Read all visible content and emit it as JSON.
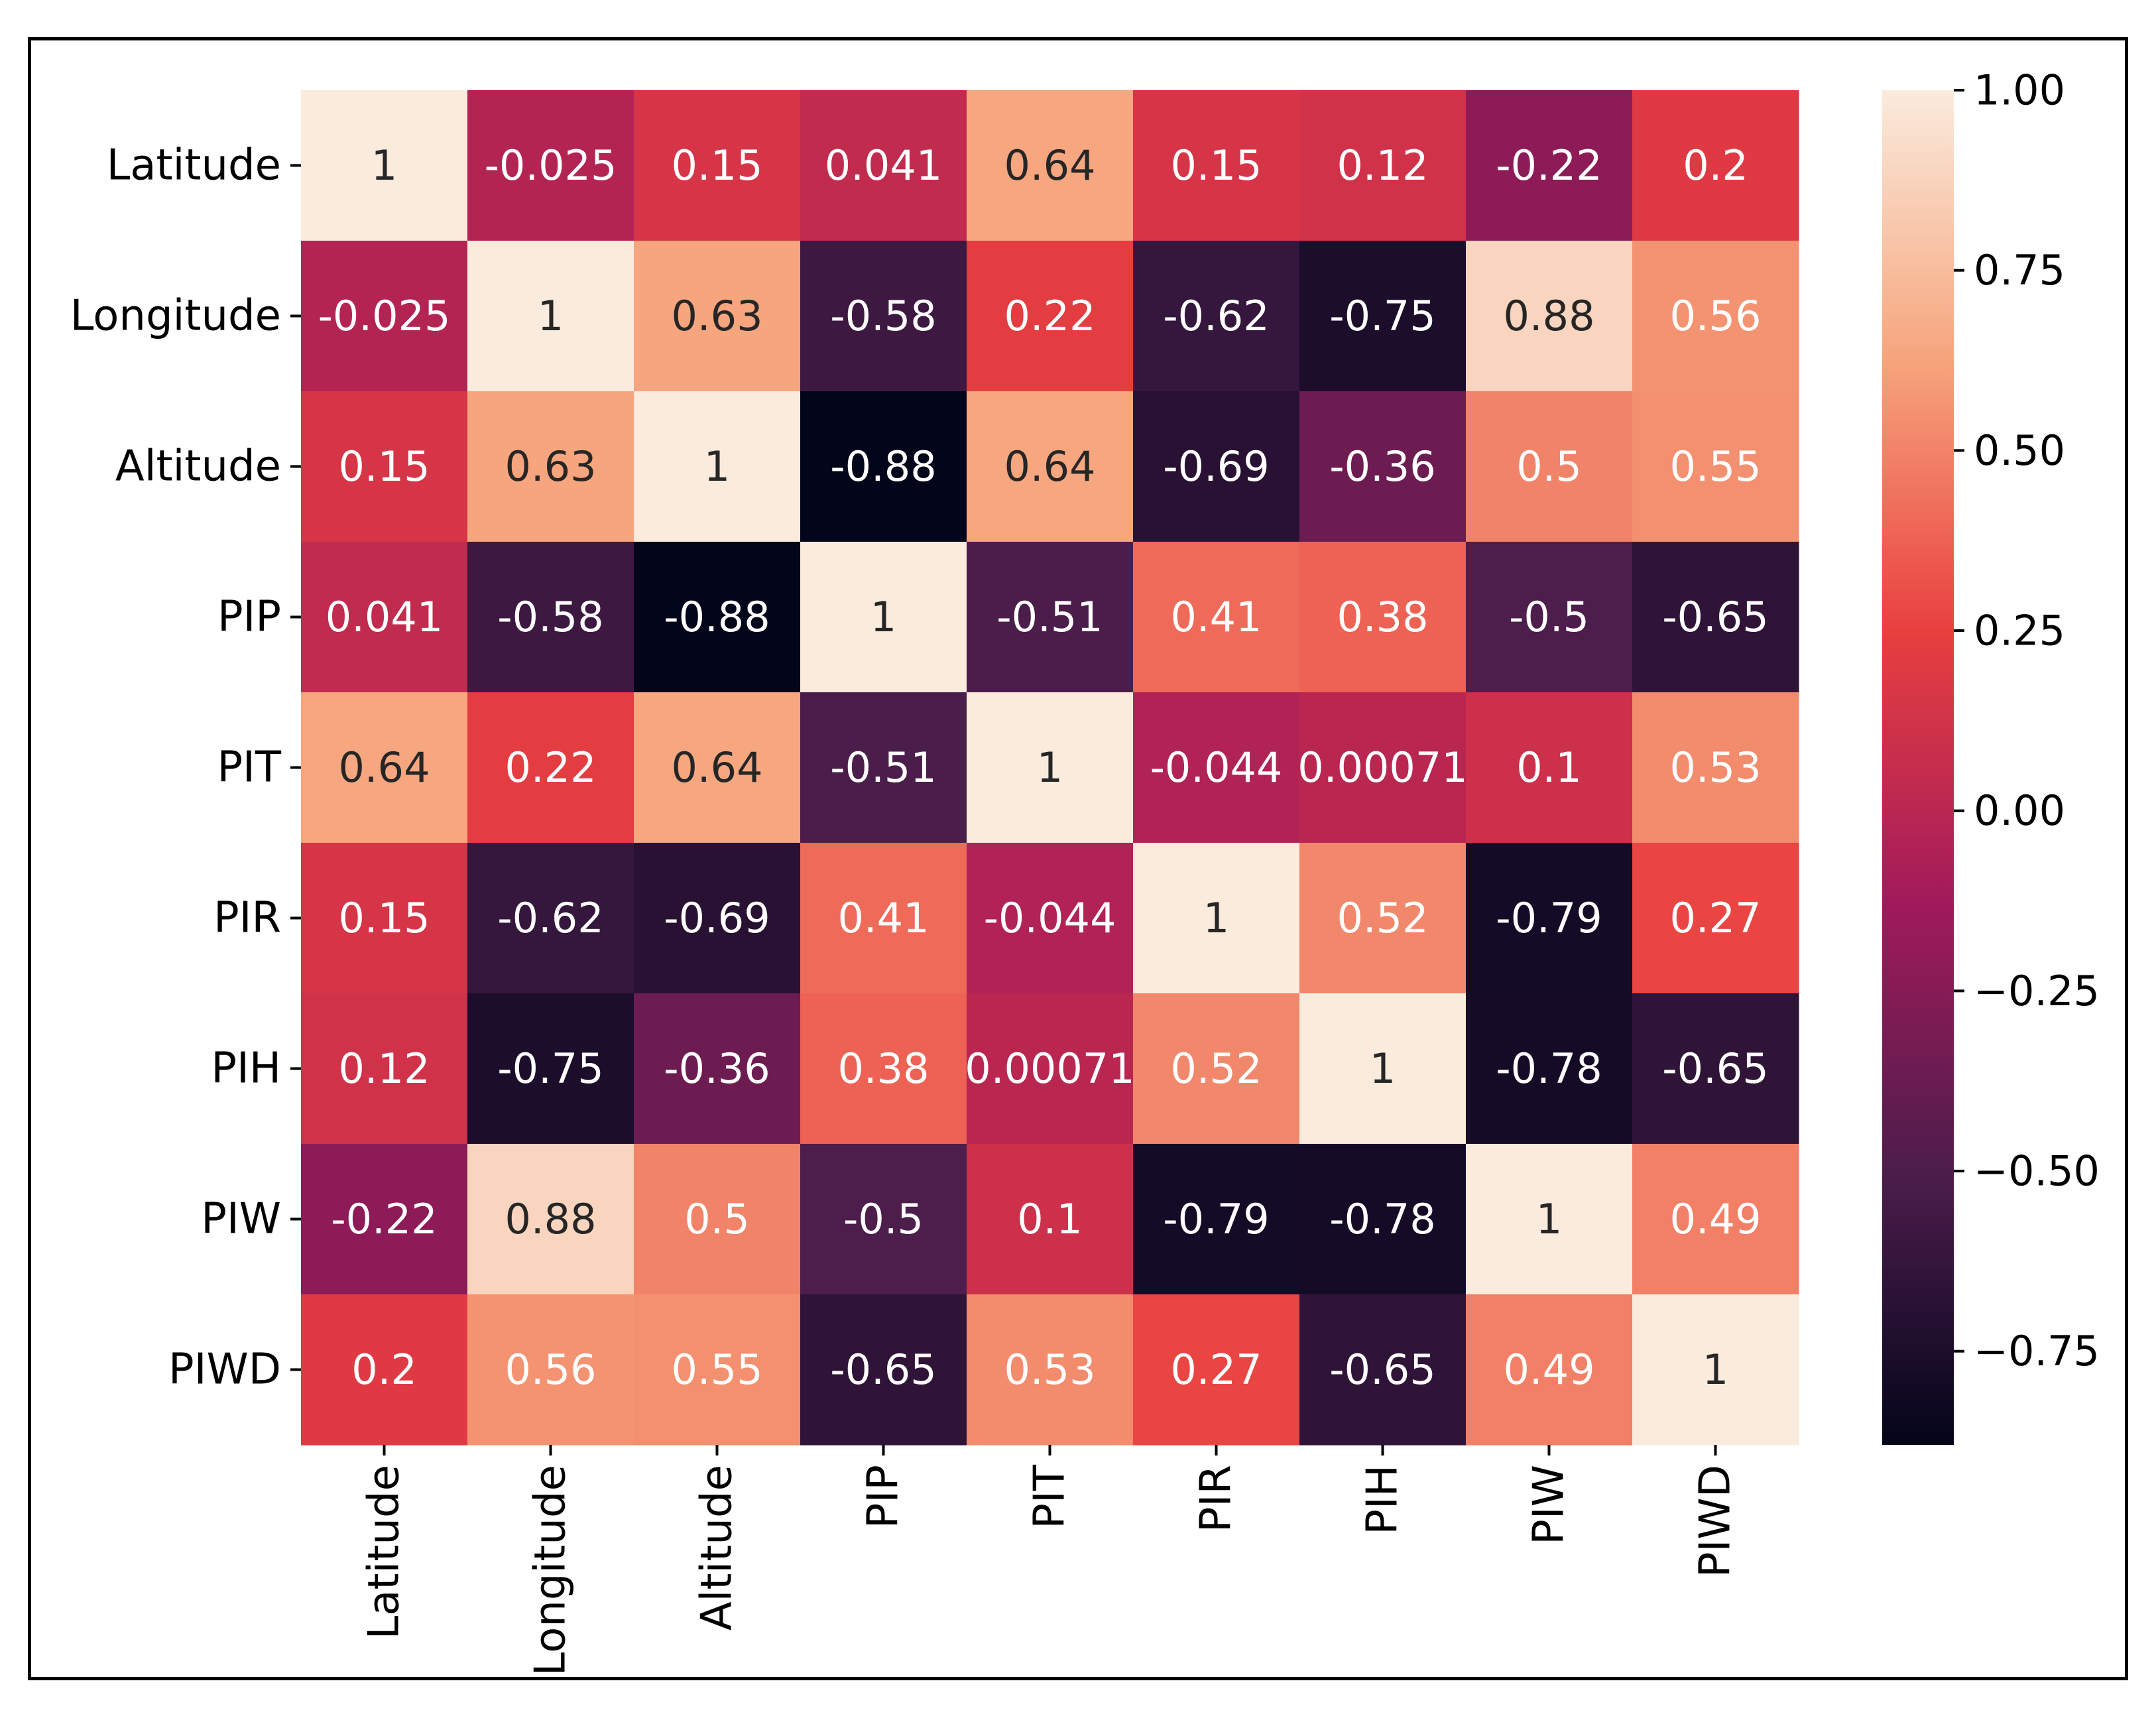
{
  "chart_data": {
    "type": "heatmap",
    "title": "",
    "row_labels": [
      "Latitude",
      "Longitude",
      "Altitude",
      "PIP",
      "PIT",
      "PIR",
      "PIH",
      "PIW",
      "PIWD"
    ],
    "col_labels": [
      "Latitude",
      "Longitude",
      "Altitude",
      "PIP",
      "PIT",
      "PIR",
      "PIH",
      "PIW",
      "PIWD"
    ],
    "values": [
      [
        1,
        -0.025,
        0.15,
        0.041,
        0.64,
        0.15,
        0.12,
        -0.22,
        0.2
      ],
      [
        -0.025,
        1,
        0.63,
        -0.58,
        0.22,
        -0.62,
        -0.75,
        0.88,
        0.56
      ],
      [
        0.15,
        0.63,
        1,
        -0.88,
        0.64,
        -0.69,
        -0.36,
        0.5,
        0.55
      ],
      [
        0.041,
        -0.58,
        -0.88,
        1,
        -0.51,
        0.41,
        0.38,
        -0.5,
        -0.65
      ],
      [
        0.64,
        0.22,
        0.64,
        -0.51,
        1,
        -0.044,
        0.00071,
        0.1,
        0.53
      ],
      [
        0.15,
        -0.62,
        -0.69,
        0.41,
        -0.044,
        1,
        0.52,
        -0.79,
        0.27
      ],
      [
        0.12,
        -0.75,
        -0.36,
        0.38,
        0.00071,
        0.52,
        1,
        -0.78,
        -0.65
      ],
      [
        -0.22,
        0.88,
        0.5,
        -0.5,
        0.1,
        -0.79,
        -0.78,
        1,
        0.49
      ],
      [
        0.2,
        0.56,
        0.55,
        -0.65,
        0.53,
        0.27,
        -0.65,
        0.49,
        1
      ]
    ],
    "annotations": [
      [
        "1",
        "-0.025",
        "0.15",
        "0.041",
        "0.64",
        "0.15",
        "0.12",
        "-0.22",
        "0.2"
      ],
      [
        "-0.025",
        "1",
        "0.63",
        "-0.58",
        "0.22",
        "-0.62",
        "-0.75",
        "0.88",
        "0.56"
      ],
      [
        "0.15",
        "0.63",
        "1",
        "-0.88",
        "0.64",
        "-0.69",
        "-0.36",
        "0.5",
        "0.55"
      ],
      [
        "0.041",
        "-0.58",
        "-0.88",
        "1",
        "-0.51",
        "0.41",
        "0.38",
        "-0.5",
        "-0.65"
      ],
      [
        "0.64",
        "0.22",
        "0.64",
        "-0.51",
        "1",
        "-0.044",
        "0.00071",
        "0.1",
        "0.53"
      ],
      [
        "0.15",
        "-0.62",
        "-0.69",
        "0.41",
        "-0.044",
        "1",
        "0.52",
        "-0.79",
        "0.27"
      ],
      [
        "0.12",
        "-0.75",
        "-0.36",
        "0.38",
        "0.00071",
        "0.52",
        "1",
        "-0.78",
        "-0.65"
      ],
      [
        "-0.22",
        "0.88",
        "0.5",
        "-0.5",
        "0.1",
        "-0.79",
        "-0.78",
        "1",
        "0.49"
      ],
      [
        "0.2",
        "0.56",
        "0.55",
        "-0.65",
        "0.53",
        "0.27",
        "-0.65",
        "0.49",
        "1"
      ]
    ],
    "colorbar": {
      "vmin": -0.88,
      "vmax": 1.0,
      "ticks": [
        1.0,
        0.75,
        0.5,
        0.25,
        0.0,
        -0.25,
        -0.5,
        -0.75
      ],
      "tick_labels": [
        "1.00",
        "0.75",
        "0.50",
        "0.25",
        "0.00",
        "−0.25",
        "−0.50",
        "−0.75"
      ]
    },
    "colormap": [
      "#03051a",
      "#4c1d4b",
      "#a11a5b",
      "#e83f3f",
      "#f6a47c",
      "#faebdd"
    ]
  }
}
